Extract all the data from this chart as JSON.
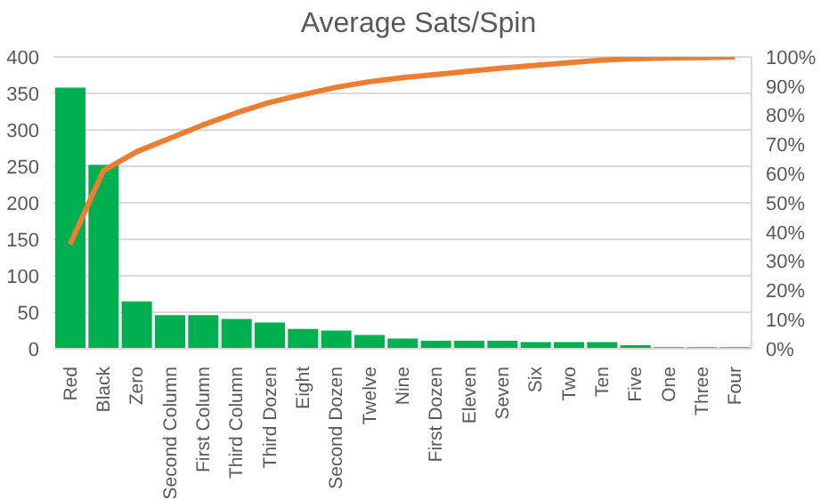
{
  "chart_data": {
    "type": "bar",
    "title": "Average Sats/Spin",
    "categories": [
      "Red",
      "Black",
      "Zero",
      "Second Column",
      "First Column",
      "Third Column",
      "Third Dozen",
      "Eight",
      "Second Dozen",
      "Twelve",
      "Nine",
      "First Dozen",
      "Eleven",
      "Seven",
      "Six",
      "Two",
      "Ten",
      "Five",
      "One",
      "Three",
      "Four"
    ],
    "series": [
      {
        "color": "#00b050",
        "values": [
          358,
          252,
          65,
          46,
          46,
          41,
          36,
          27,
          25,
          19,
          14,
          11,
          11,
          11,
          9,
          9,
          9,
          5,
          2,
          2,
          2
        ]
      },
      {
        "type": "line",
        "axis": "y2",
        "color": "#ed7d31",
        "values": [
          35.8,
          61,
          67.5,
          72.1,
          76.7,
          80.8,
          84.4,
          87.1,
          89.6,
          91.5,
          92.9,
          94,
          95.1,
          96.2,
          97.1,
          98,
          98.9,
          99.4,
          99.6,
          99.8,
          100
        ]
      }
    ],
    "ylim": [
      0,
      400
    ],
    "yticks": [
      0,
      50,
      100,
      150,
      200,
      250,
      300,
      350,
      400
    ],
    "y2lim": [
      0,
      100
    ],
    "y2ticks": [
      {
        "value": 0,
        "label": "0%"
      },
      {
        "value": 10,
        "label": "10%"
      },
      {
        "value": 20,
        "label": "20%"
      },
      {
        "value": 30,
        "label": "30%"
      },
      {
        "value": 40,
        "label": "40%"
      },
      {
        "value": 50,
        "label": "50%"
      },
      {
        "value": 60,
        "label": "60%"
      },
      {
        "value": 70,
        "label": "70%"
      },
      {
        "value": 80,
        "label": "80%"
      },
      {
        "value": 90,
        "label": "90%"
      },
      {
        "value": 100,
        "label": "100%"
      }
    ],
    "grid": "y",
    "legend": false,
    "marker": "none"
  }
}
